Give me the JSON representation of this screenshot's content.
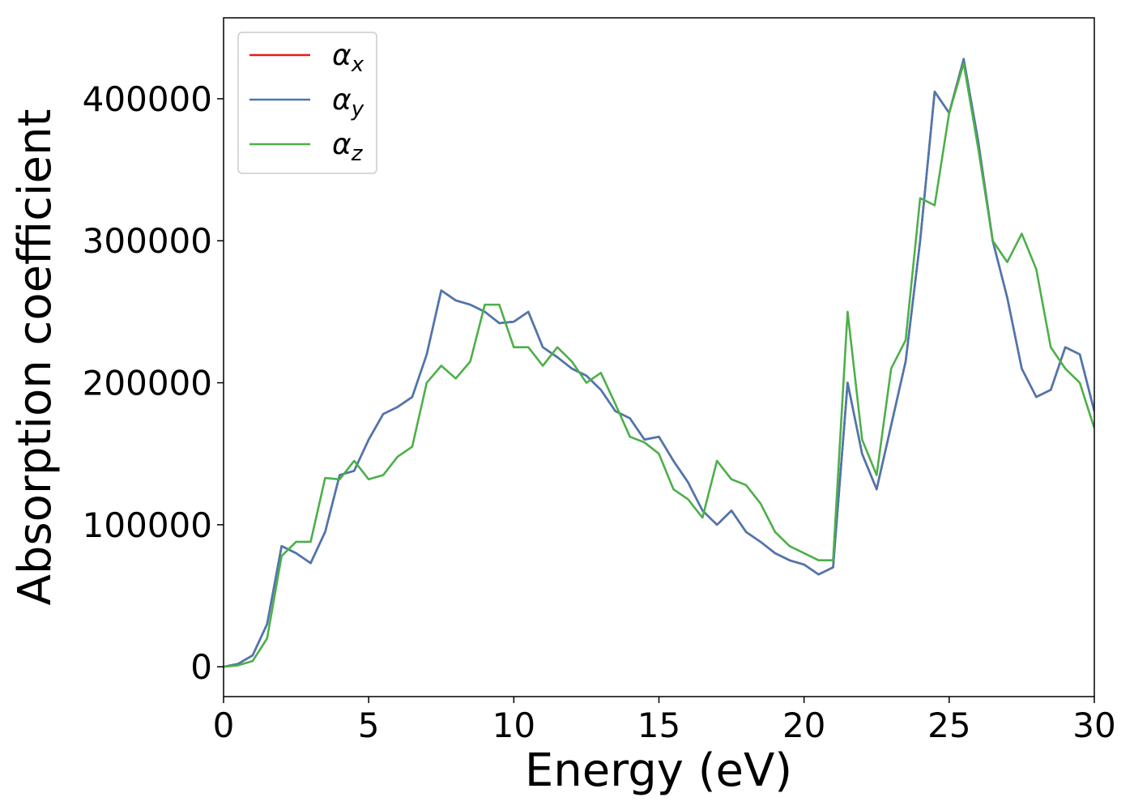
{
  "chart_data": {
    "type": "line",
    "xlabel": "Energy (eV)",
    "ylabel": "Absorption coefficient",
    "x": [
      0,
      0.5,
      1,
      1.5,
      2,
      2.5,
      3,
      3.5,
      4,
      4.5,
      5,
      5.5,
      6,
      6.5,
      7,
      7.5,
      8,
      8.5,
      9,
      9.5,
      10,
      10.5,
      11,
      11.5,
      12,
      12.5,
      13,
      13.5,
      14,
      14.5,
      15,
      15.5,
      16,
      16.5,
      17,
      17.5,
      18,
      18.5,
      19,
      19.5,
      20,
      20.5,
      21,
      21.5,
      22,
      22.5,
      23,
      23.5,
      24,
      24.5,
      25,
      25.5,
      26,
      26.5,
      27,
      27.5,
      28,
      28.5,
      29,
      29.5,
      30
    ],
    "series": [
      {
        "name": "αx",
        "color": "#e41a1c",
        "values": [
          0,
          2000,
          8000,
          30000,
          85000,
          80000,
          73000,
          95000,
          135000,
          138000,
          160000,
          178000,
          183000,
          190000,
          220000,
          265000,
          258000,
          255000,
          250000,
          242000,
          243000,
          250000,
          225000,
          218000,
          210000,
          205000,
          195000,
          180000,
          175000,
          160000,
          162000,
          145000,
          130000,
          110000,
          100000,
          110000,
          95000,
          88000,
          80000,
          75000,
          72000,
          65000,
          70000,
          200000,
          150000,
          125000,
          170000,
          215000,
          300000,
          405000,
          390000,
          428000,
          370000,
          300000,
          260000,
          210000,
          190000,
          195000,
          225000,
          220000,
          180000
        ]
      },
      {
        "name": "αy",
        "color": "#4a78b0",
        "values": [
          0,
          2000,
          8000,
          30000,
          85000,
          80000,
          73000,
          95000,
          135000,
          138000,
          160000,
          178000,
          183000,
          190000,
          220000,
          265000,
          258000,
          255000,
          250000,
          242000,
          243000,
          250000,
          225000,
          218000,
          210000,
          205000,
          195000,
          180000,
          175000,
          160000,
          162000,
          145000,
          130000,
          110000,
          100000,
          110000,
          95000,
          88000,
          80000,
          75000,
          72000,
          65000,
          70000,
          200000,
          150000,
          125000,
          170000,
          215000,
          300000,
          405000,
          390000,
          428000,
          370000,
          300000,
          260000,
          210000,
          190000,
          195000,
          225000,
          220000,
          180000
        ]
      },
      {
        "name": "αz",
        "color": "#4daf4a",
        "values": [
          0,
          1000,
          4000,
          20000,
          78000,
          88000,
          88000,
          133000,
          132000,
          145000,
          132000,
          135000,
          148000,
          155000,
          200000,
          212000,
          203000,
          215000,
          255000,
          255000,
          225000,
          225000,
          212000,
          225000,
          215000,
          200000,
          207000,
          185000,
          162000,
          158000,
          150000,
          125000,
          118000,
          105000,
          145000,
          132000,
          128000,
          115000,
          95000,
          85000,
          80000,
          75000,
          75000,
          250000,
          160000,
          135000,
          210000,
          230000,
          330000,
          325000,
          390000,
          425000,
          365000,
          300000,
          285000,
          305000,
          280000,
          225000,
          210000,
          200000,
          168000
        ]
      }
    ],
    "xlim": [
      0,
      30
    ],
    "xticks": [
      0,
      5,
      10,
      15,
      20,
      25,
      30
    ],
    "ylim": [
      -21000,
      457000
    ],
    "yticks": [
      0,
      100000,
      200000,
      300000,
      400000
    ],
    "legend": "upper left",
    "grid": false
  }
}
